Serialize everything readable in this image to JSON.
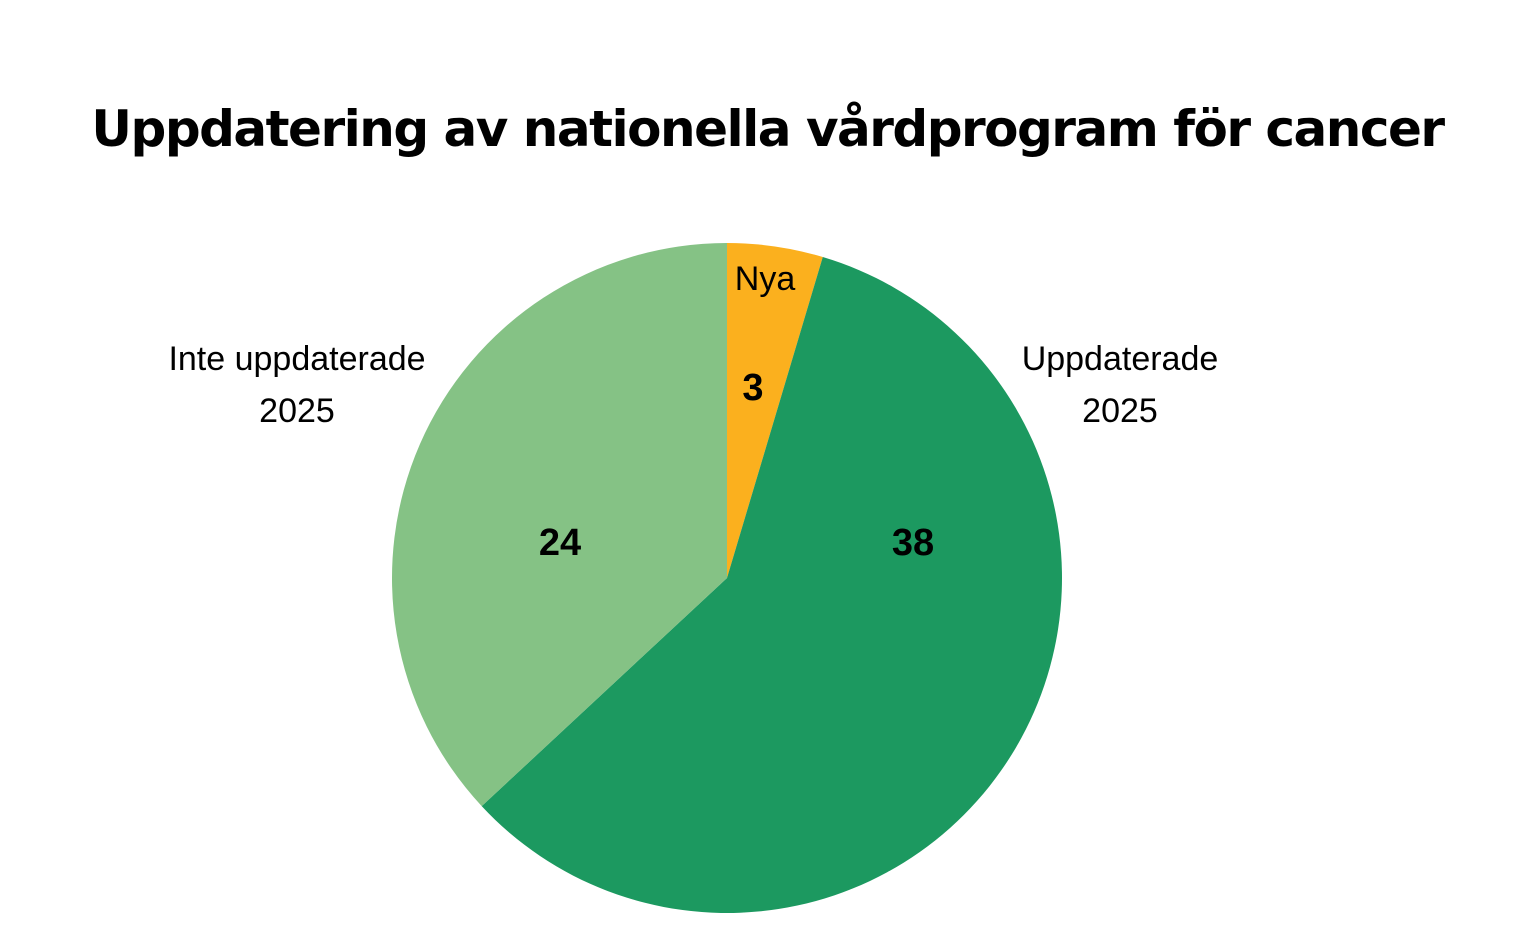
{
  "chart_data": {
    "type": "pie",
    "title": "Uppdatering av nationella vårdprogram för cancer",
    "start_angle": "top, clockwise",
    "slices": [
      {
        "label": "Nya",
        "label_lines": [
          "Nya"
        ],
        "value": 3,
        "color": "#FBB01E"
      },
      {
        "label": "Uppdaterade 2025",
        "label_lines": [
          "Uppdaterade",
          "2025"
        ],
        "value": 38,
        "color": "#1C9960"
      },
      {
        "label": "Inte uppdaterade 2025",
        "label_lines": [
          "Inte uppdaterade",
          "2025"
        ],
        "value": 24,
        "color": "#85C285"
      }
    ],
    "legend": "none"
  }
}
